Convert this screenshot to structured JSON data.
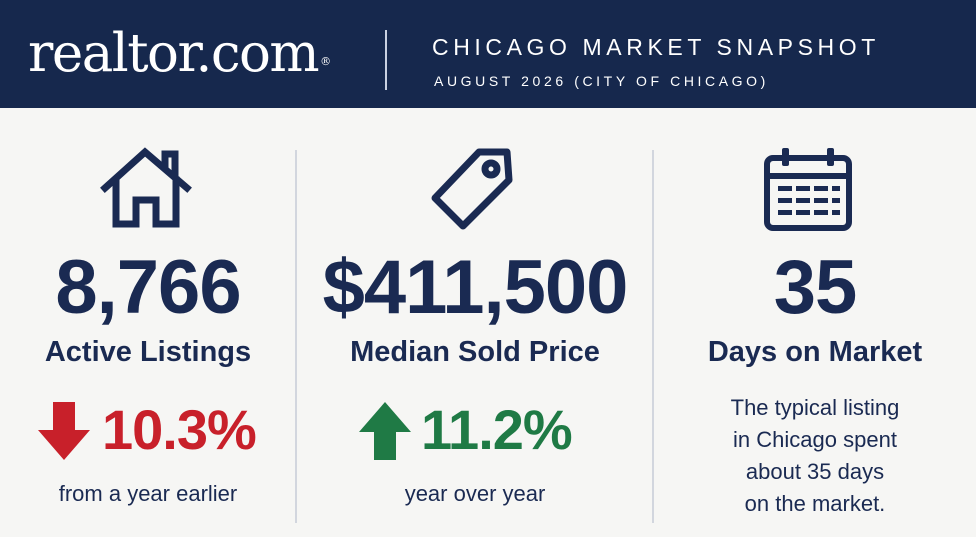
{
  "header": {
    "logo": "realtor.com",
    "logo_mark": "®",
    "title": "CHICAGO MARKET SNAPSHOT",
    "subtitle": "AUGUST 2026 (CITY OF CHICAGO)"
  },
  "stats": [
    {
      "icon": "house-icon",
      "value": "8,766",
      "label": "Active Listings",
      "change": "10.3%",
      "direction": "down",
      "change_color": "#c8202a",
      "note": "from a year earlier"
    },
    {
      "icon": "price-tag-icon",
      "value": "$411,500",
      "label": "Median Sold Price",
      "change": "11.2%",
      "direction": "up",
      "change_color": "#1f7a45",
      "note": "year over year"
    },
    {
      "icon": "calendar-icon",
      "value": "35",
      "label": "Days on Market",
      "description": [
        "The typical listing",
        "in Chicago spent",
        "about 35 days",
        "on the market."
      ]
    }
  ],
  "colors": {
    "header_bg": "#16284d",
    "text_navy": "#1a2a52",
    "page_bg": "#f6f6f4"
  }
}
